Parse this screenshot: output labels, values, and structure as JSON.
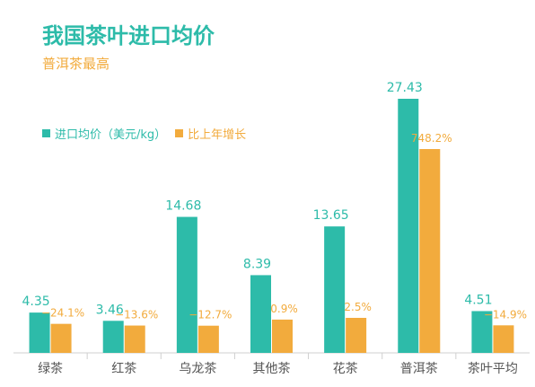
{
  "chart_data": {
    "type": "bar",
    "title": "我国茶叶进口均价",
    "subtitle": "普洱茶最高",
    "categories": [
      "绿茶",
      "红茶",
      "乌龙茶",
      "其他茶",
      "花茶",
      "普洱茶",
      "茶叶平均"
    ],
    "series": [
      {
        "name": "进口均价（美元/kg）",
        "values": [
          4.35,
          3.46,
          14.68,
          8.39,
          13.65,
          27.43,
          4.51
        ],
        "labels": [
          "4.35",
          "3.46",
          "14.68",
          "8.39",
          "13.65",
          "27.43",
          "4.51"
        ],
        "color": "#2dbba9"
      },
      {
        "name": "比上年增长",
        "values": [
          -24.1,
          -13.6,
          -12.7,
          0.9,
          2.5,
          748.2,
          -14.9
        ],
        "labels": [
          "−24.1%",
          "−13.6%",
          "−12.7%",
          "0.9%",
          "2.5%",
          "748.2%",
          "−14.9%"
        ],
        "color": "#f2ab3d"
      }
    ],
    "legend_position": "top-left",
    "grid": false
  }
}
